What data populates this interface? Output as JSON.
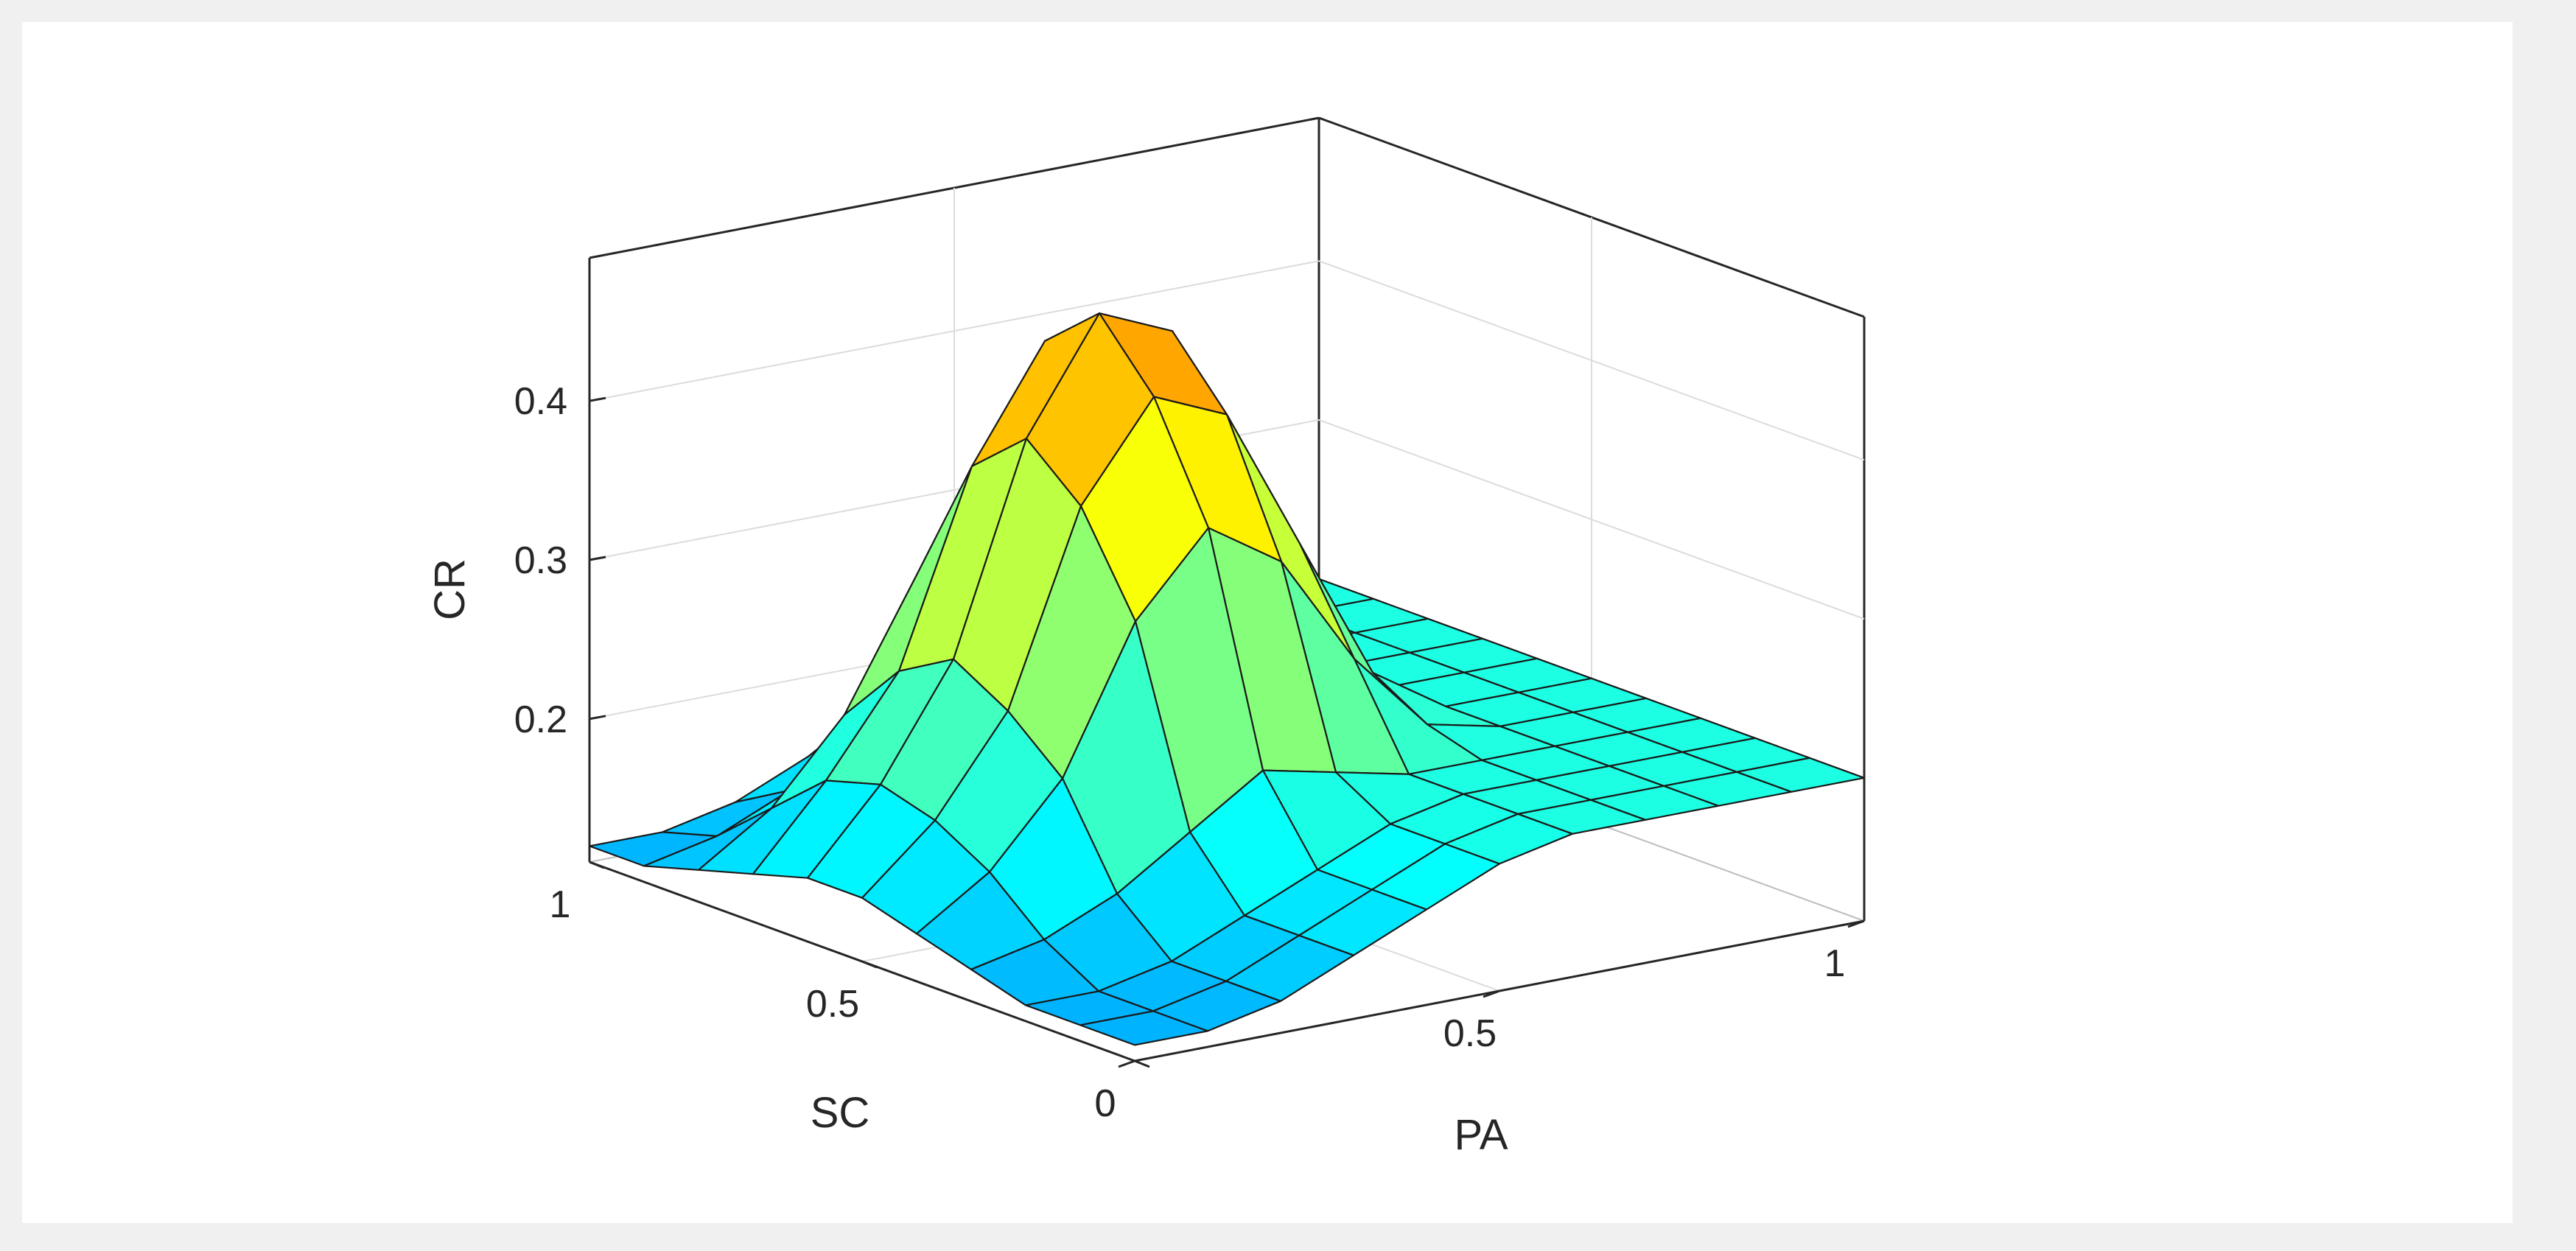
{
  "chart_data": {
    "type": "surface",
    "x_label": "PA",
    "y_label": "SC",
    "z_label": "CR",
    "x_ticks": [
      "0",
      "0.5",
      "1"
    ],
    "y_ticks": [
      "0",
      "0.5",
      "1"
    ],
    "z_ticks": [
      "0.2",
      "0.3",
      "0.4"
    ],
    "x_range": [
      0,
      1
    ],
    "y_range": [
      0,
      1
    ],
    "z_range": [
      0.11,
      0.49
    ],
    "grid": true,
    "colormap": "jet",
    "x_values": [
      0,
      0.1,
      0.2,
      0.3,
      0.4,
      0.5,
      0.6,
      0.7,
      0.8,
      0.9,
      1.0
    ],
    "y_values": [
      0,
      0.1,
      0.2,
      0.3,
      0.4,
      0.5,
      0.6,
      0.7,
      0.8,
      0.9,
      1.0
    ],
    "z_values": [
      [
        0.12,
        0.12,
        0.13,
        0.15,
        0.17,
        0.19,
        0.2,
        0.2,
        0.2,
        0.2,
        0.2
      ],
      [
        0.12,
        0.12,
        0.13,
        0.15,
        0.17,
        0.19,
        0.2,
        0.2,
        0.2,
        0.2,
        0.2
      ],
      [
        0.12,
        0.12,
        0.13,
        0.15,
        0.17,
        0.19,
        0.2,
        0.2,
        0.2,
        0.2,
        0.2
      ],
      [
        0.13,
        0.14,
        0.16,
        0.19,
        0.22,
        0.21,
        0.2,
        0.2,
        0.2,
        0.2,
        0.2
      ],
      [
        0.14,
        0.17,
        0.22,
        0.31,
        0.36,
        0.33,
        0.26,
        0.21,
        0.2,
        0.2,
        0.2
      ],
      [
        0.15,
        0.19,
        0.25,
        0.37,
        0.43,
        0.41,
        0.32,
        0.23,
        0.2,
        0.2,
        0.2
      ],
      [
        0.15,
        0.2,
        0.27,
        0.4,
        0.47,
        0.45,
        0.35,
        0.24,
        0.2,
        0.2,
        0.2
      ],
      [
        0.14,
        0.19,
        0.25,
        0.37,
        0.44,
        0.43,
        0.33,
        0.23,
        0.2,
        0.2,
        0.2
      ],
      [
        0.13,
        0.16,
        0.21,
        0.29,
        0.34,
        0.33,
        0.27,
        0.21,
        0.2,
        0.2,
        0.2
      ],
      [
        0.12,
        0.13,
        0.15,
        0.19,
        0.21,
        0.21,
        0.2,
        0.2,
        0.2,
        0.2,
        0.2
      ],
      [
        0.12,
        0.12,
        0.13,
        0.15,
        0.17,
        0.19,
        0.2,
        0.2,
        0.2,
        0.2,
        0.2
      ]
    ]
  }
}
